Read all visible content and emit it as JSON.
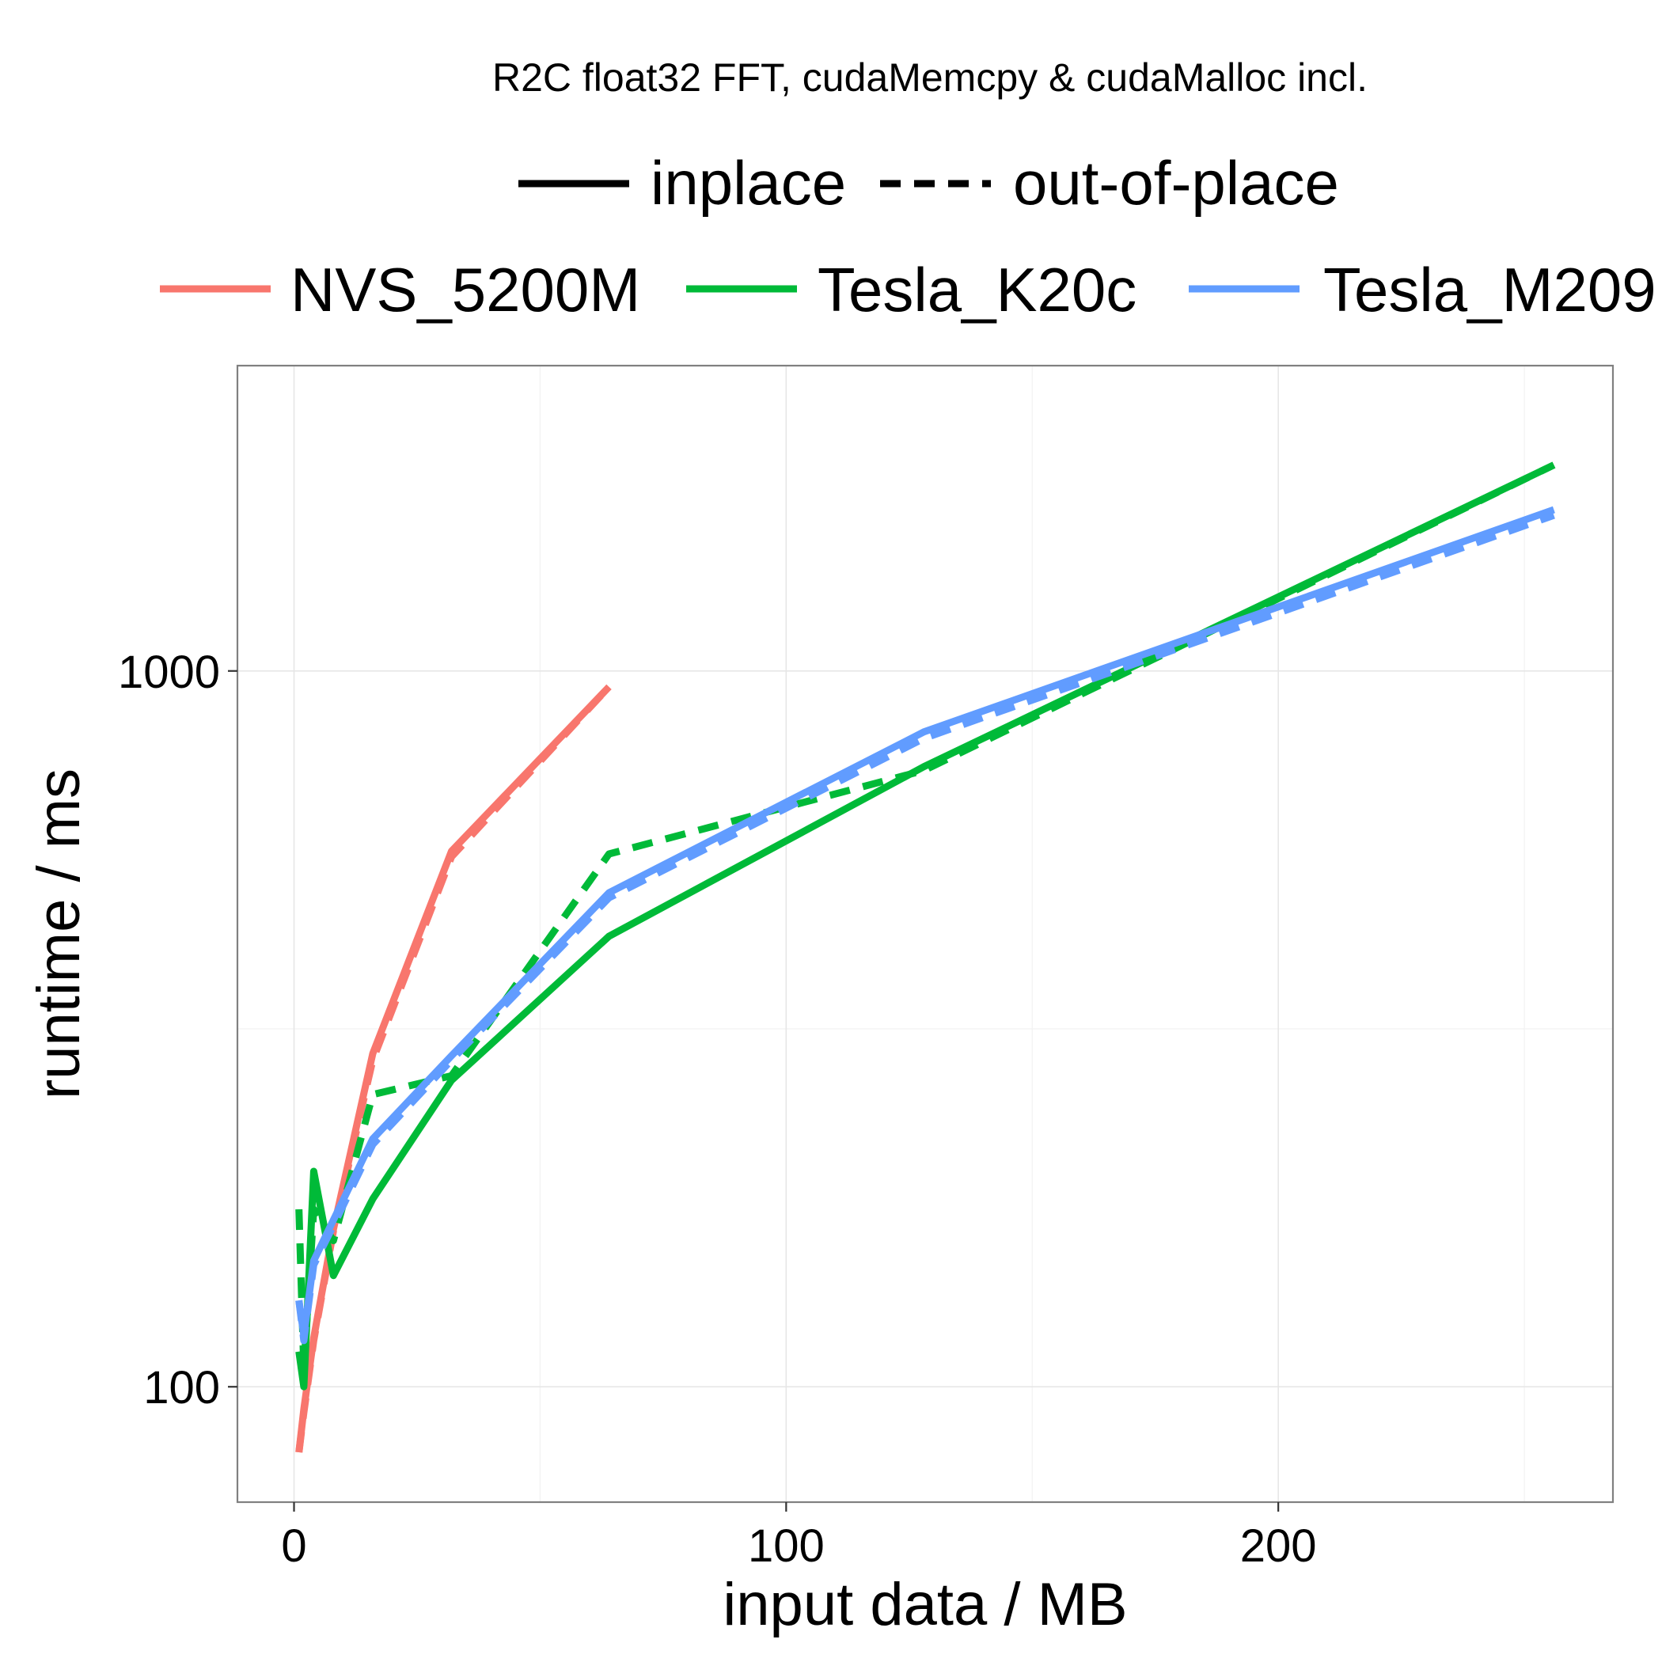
{
  "chart_data": {
    "type": "line",
    "title": "R2C float32 FFT, cudaMemcpy & cudaMalloc incl.",
    "xlabel": "input data / MB",
    "ylabel": "runtime / ms",
    "x_scale": "linear",
    "y_scale": "log10",
    "xlim": [
      -11.5,
      268
    ],
    "ylim": [
      69,
      2670
    ],
    "x_ticks": [
      0,
      100,
      200
    ],
    "x_tick_labels": [
      "0",
      "100",
      "200"
    ],
    "y_ticks": [
      100,
      1000
    ],
    "y_tick_labels": [
      "100",
      "1000"
    ],
    "grid": true,
    "legend_position": "top",
    "linetype_legend": [
      {
        "label": "inplace",
        "dash": "solid"
      },
      {
        "label": "out-of-place",
        "dash": "dashed"
      }
    ],
    "color_legend": [
      {
        "label": "NVS_5200M",
        "color": "#F8766D"
      },
      {
        "label": "Tesla_K20c",
        "color": "#00BA38"
      },
      {
        "label": "Tesla_M209",
        "color": "#619CFF"
      }
    ],
    "series": [
      {
        "device": "NVS_5200M",
        "mode": "inplace",
        "color": "#F8766D",
        "dash": "solid",
        "points": [
          [
            1,
            81
          ],
          [
            2,
            93
          ],
          [
            4,
            117
          ],
          [
            8,
            166
          ],
          [
            16,
            292
          ],
          [
            32,
            560
          ],
          [
            64,
            950
          ]
        ]
      },
      {
        "device": "NVS_5200M",
        "mode": "out-of-place",
        "color": "#F8766D",
        "dash": "dashed",
        "points": [
          [
            1,
            81
          ],
          [
            2,
            92
          ],
          [
            4,
            116
          ],
          [
            8,
            165
          ],
          [
            16,
            286
          ],
          [
            32,
            550
          ],
          [
            64,
            950
          ]
        ]
      },
      {
        "device": "Tesla_K20c",
        "mode": "inplace",
        "color": "#00BA38",
        "dash": "solid",
        "points": [
          [
            1,
            112
          ],
          [
            2,
            100
          ],
          [
            4,
            200
          ],
          [
            8,
            143
          ],
          [
            16,
            183
          ],
          [
            32,
            268
          ],
          [
            64,
            426
          ],
          [
            128,
            735
          ],
          [
            256,
            1940
          ]
        ]
      },
      {
        "device": "Tesla_K20c",
        "mode": "out-of-place",
        "color": "#00BA38",
        "dash": "dashed",
        "points": [
          [
            1,
            177
          ],
          [
            2,
            106
          ],
          [
            4,
            177
          ],
          [
            8,
            160
          ],
          [
            16,
            256
          ],
          [
            32,
            272
          ],
          [
            64,
            555
          ],
          [
            128,
            726
          ],
          [
            256,
            1940
          ]
        ]
      },
      {
        "device": "Tesla_M209",
        "mode": "inplace",
        "color": "#619CFF",
        "dash": "solid",
        "points": [
          [
            1,
            132
          ],
          [
            2,
            118
          ],
          [
            4,
            150
          ],
          [
            8,
            171
          ],
          [
            16,
            222
          ],
          [
            32,
            290
          ],
          [
            64,
            490
          ],
          [
            128,
            822
          ],
          [
            256,
            1680
          ]
        ]
      },
      {
        "device": "Tesla_M209",
        "mode": "out-of-place",
        "color": "#619CFF",
        "dash": "dashed",
        "points": [
          [
            1,
            132
          ],
          [
            2,
            116
          ],
          [
            4,
            148
          ],
          [
            8,
            168
          ],
          [
            16,
            218
          ],
          [
            32,
            286
          ],
          [
            64,
            482
          ],
          [
            128,
            805
          ],
          [
            256,
            1650
          ]
        ]
      }
    ]
  }
}
